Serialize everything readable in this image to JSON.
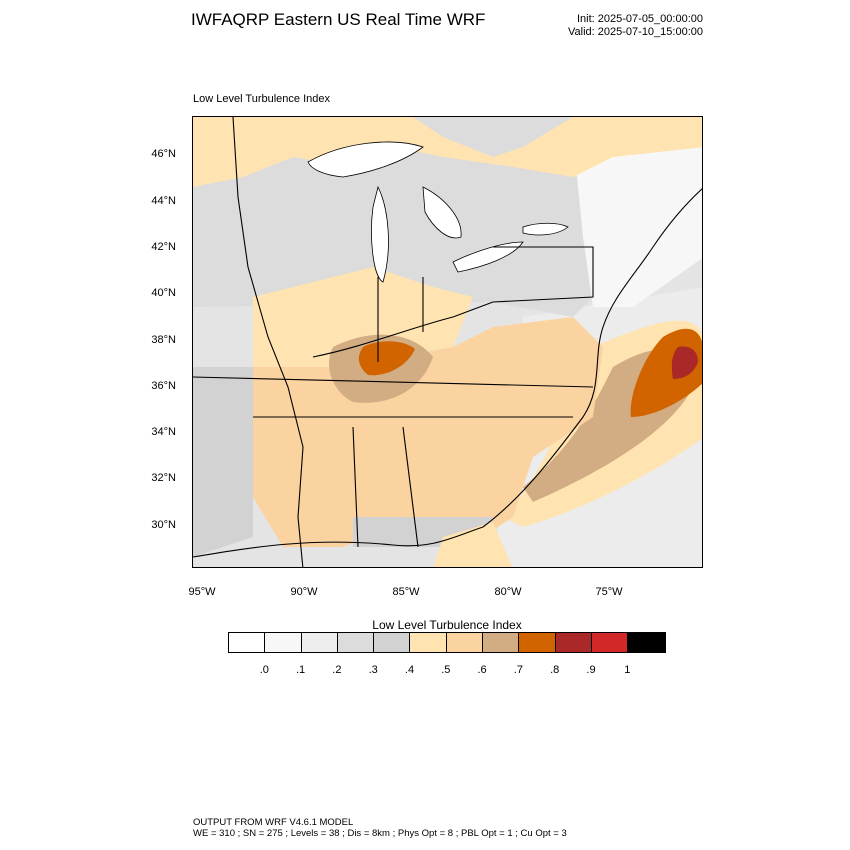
{
  "header": {
    "title": "IWFAQRP Eastern US Real Time WRF",
    "init": "Init: 2025-07-05_00:00:00",
    "valid": "Valid: 2025-07-10_15:00:00"
  },
  "plot": {
    "label": "Low Level Turbulence Index",
    "lat_ticks": [
      "46°N",
      "44°N",
      "42°N",
      "40°N",
      "38°N",
      "36°N",
      "34°N",
      "32°N",
      "30°N"
    ],
    "lon_ticks": [
      "95°W",
      "90°W",
      "85°W",
      "80°W",
      "75°W"
    ]
  },
  "colorbar": {
    "title": "Low Level Turbulence Index",
    "colors": [
      "#ffffff",
      "#f7f7f7",
      "#eeeeee",
      "#dcdcdc",
      "#d2d2d2",
      "#ffe3b0",
      "#fad3a0",
      "#d2ac82",
      "#d26400",
      "#aa2828",
      "#d22828",
      "#000000"
    ],
    "tick_labels": [
      ".0",
      ".1",
      ".2",
      ".3",
      ".4",
      ".5",
      ".6",
      ".7",
      ".8",
      ".9",
      "1"
    ]
  },
  "footer": {
    "line1": "OUTPUT FROM WRF V4.6.1 MODEL",
    "line2": "WE = 310 ; SN = 275 ; Levels = 38 ; Dis = 8km ; Phys Opt = 8 ; PBL Opt = 1 ; Cu Opt = 3"
  }
}
